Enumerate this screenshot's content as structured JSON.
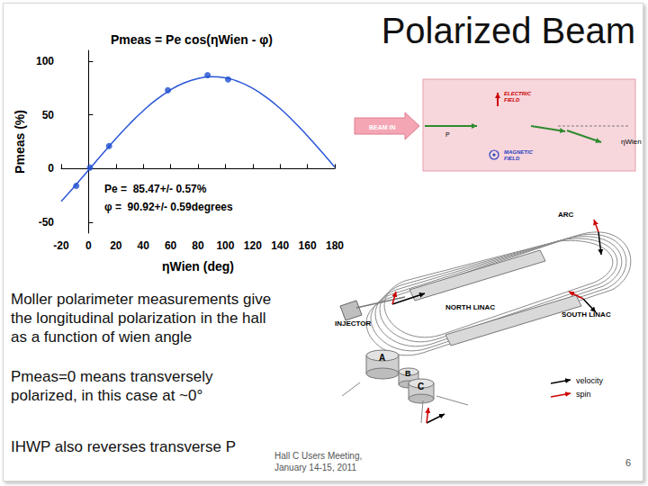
{
  "slide": {
    "title": "Polarized Beam",
    "bullets": [
      "Moller polarimeter measurements give the longitudinal polarization in the hall as a function of wien angle",
      "Pmeas=0 means transversely polarized, in this case at ~0°",
      "IHWP also reverses transverse P"
    ],
    "footer": [
      "Hall C Users Meeting,",
      "January 14-15, 2011"
    ],
    "page": 6
  },
  "wien_diagram": {
    "electric": "ELECTRIC FIELD",
    "magnetic": "MAGNETIC FIELD",
    "beam": "BEAM IN",
    "p": "P",
    "angle": "ηWien"
  },
  "accelerator_diagram": {
    "arc": "ARC",
    "north_linac": "NORTH LINAC",
    "south_linac": "SOUTH LINAC",
    "injector": "INJECTOR",
    "hall_a": "A",
    "hall_b": "B",
    "hall_c": "C",
    "legend": [
      {
        "label": "velocity",
        "color": "#000000"
      },
      {
        "label": "spin",
        "color": "#cc0000"
      }
    ]
  },
  "chart_data": {
    "type": "scatter",
    "title": "Pmeas = Pe cos(ηWien - φ)",
    "x_label": "ηWien (deg)",
    "y_label": "Pmeas (%)",
    "annotations": [
      "Pe =  85.47+/- 0.57%",
      "φ =  90.92+/- 0.59degrees"
    ],
    "series": [
      {
        "type": "scatter",
        "color": "#1f4fd0",
        "marker": "circle",
        "x": [
          -9,
          1,
          15,
          58,
          87,
          102
        ],
        "values": [
          -16,
          1,
          21,
          73,
          87,
          83
        ]
      },
      {
        "type": "line",
        "color": "#2a56d8",
        "line_style": "solid",
        "x": [
          -20,
          -10,
          0,
          10,
          20,
          30,
          40,
          50,
          60,
          70,
          80,
          90,
          100,
          110,
          120,
          130,
          140,
          150,
          160,
          170,
          180
        ],
        "values": [
          -30.5,
          -16.2,
          -1.4,
          13.5,
          27.9,
          41.6,
          53.9,
          64.6,
          73.3,
          79.8,
          83.9,
          85.5,
          84.4,
          80.8,
          74.7,
          66.3,
          56.0,
          43.9,
          30.5,
          16.2,
          1.4
        ]
      }
    ],
    "xlim": [
      -20,
      180
    ],
    "xticks": [
      -20,
      0,
      20,
      40,
      60,
      80,
      100,
      120,
      140,
      160,
      180
    ],
    "ylim": [
      -60,
      110
    ],
    "yticks": [
      -50,
      0,
      50,
      100
    ],
    "grid": false
  }
}
